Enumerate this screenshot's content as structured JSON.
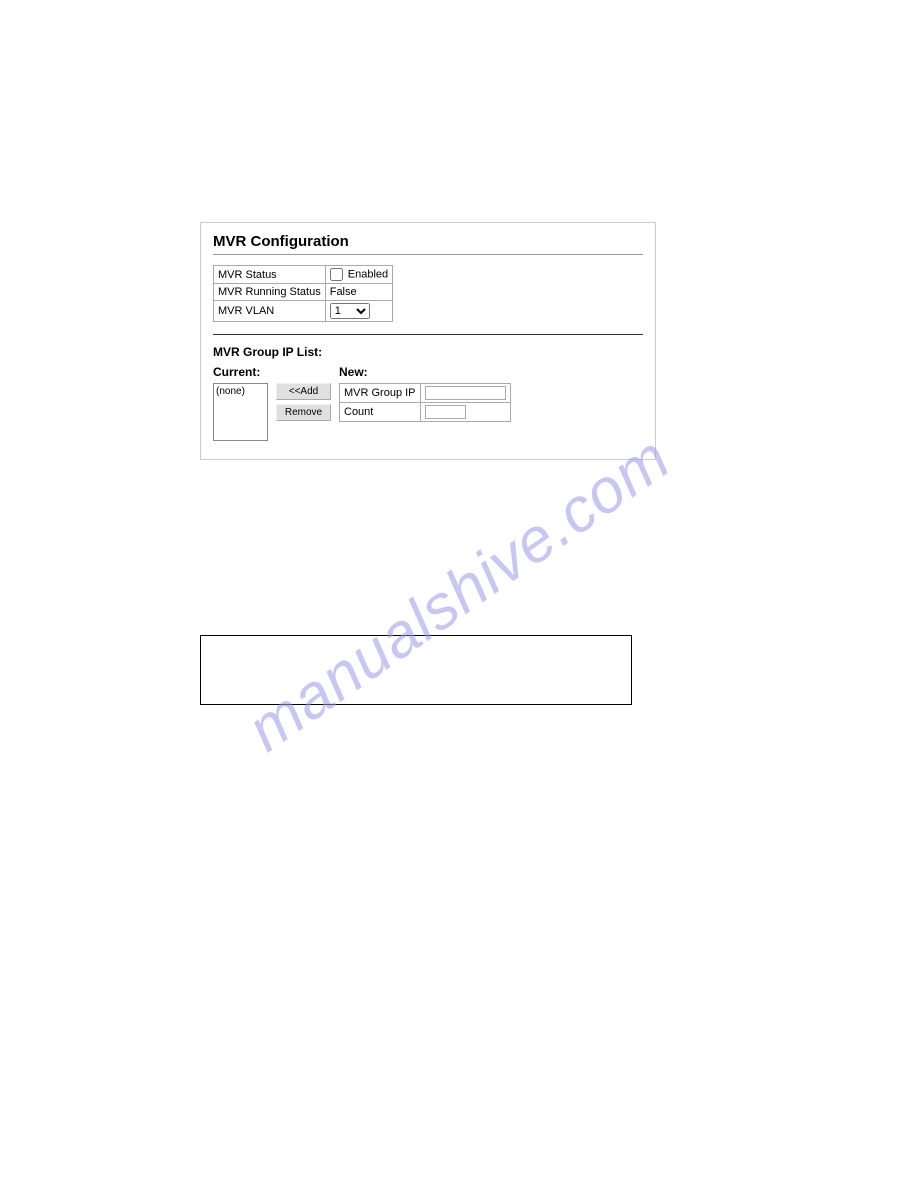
{
  "panel": {
    "title": "MVR Configuration",
    "rows": {
      "status_label": "MVR Status",
      "status_checkbox_label": "Enabled",
      "running_label": "MVR Running Status",
      "running_value": "False",
      "vlan_label": "MVR VLAN",
      "vlan_value": "1"
    },
    "group_section_title": "MVR Group IP List:",
    "current_label": "Current:",
    "current_none": "(none)",
    "new_label": "New:",
    "add_button": "<<Add",
    "remove_button": "Remove",
    "new_fields": {
      "group_ip_label": "MVR Group IP",
      "count_label": "Count"
    }
  },
  "watermark_text": "manualshive.com",
  "colors": {
    "panel_border": "#cccccc",
    "table_border": "#aaaaaa",
    "hr": "#999999",
    "watermark": "#9a9ae8",
    "button_bg": "#e0e0e0"
  }
}
